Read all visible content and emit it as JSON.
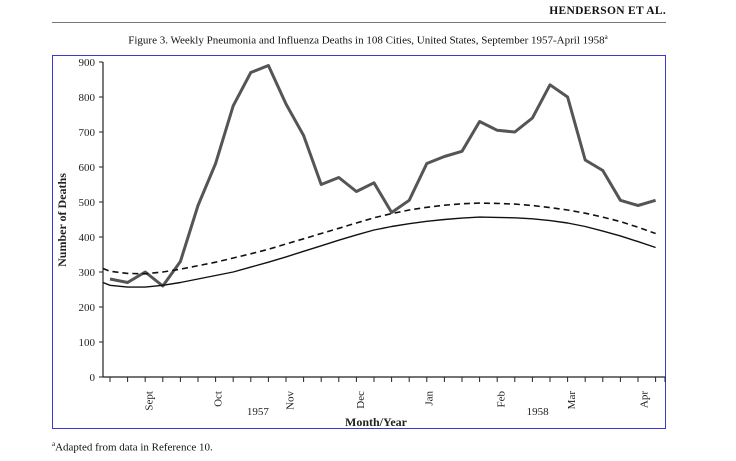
{
  "header": {
    "running_head": "HENDERSON ET AL."
  },
  "caption": {
    "text": "Figure 3.   Weekly Pneumonia and Influenza Deaths in 108 Cities, United States, September 1957-April 1958",
    "marker": "a"
  },
  "footnote": {
    "marker": "a",
    "text": "Adapted from data in Reference 10."
  },
  "colors": {
    "frame": "#3a3ad0",
    "observed": "#555555",
    "baseline": "#111111"
  },
  "chart_data": {
    "type": "line",
    "title": "Weekly Pneumonia and Influenza Deaths in 108 Cities, United States, September 1957-April 1958",
    "xlabel": "Month/Year",
    "ylabel": "Number of Deaths",
    "ylim": [
      0,
      900
    ],
    "yticks": [
      0,
      100,
      200,
      300,
      400,
      500,
      600,
      700,
      800,
      900
    ],
    "grid": false,
    "legend": "none",
    "month_ticks": [
      {
        "label": "Sept",
        "week": 3.2
      },
      {
        "label": "Oct",
        "week": 7.1
      },
      {
        "label": "Nov",
        "week": 11.2
      },
      {
        "label": "Dec",
        "week": 15.2
      },
      {
        "label": "Jan",
        "week": 19.1
      },
      {
        "label": "Feb",
        "week": 23.2
      },
      {
        "label": "Mar",
        "week": 27.2
      },
      {
        "label": "Apr",
        "week": 31.3
      }
    ],
    "year_labels": [
      {
        "label": "1957",
        "week": 9.4
      },
      {
        "label": "1958",
        "week": 25.3
      }
    ],
    "x": [
      1,
      2,
      3,
      4,
      5,
      6,
      7,
      8,
      9,
      10,
      11,
      12,
      13,
      14,
      15,
      16,
      17,
      18,
      19,
      20,
      21,
      22,
      23,
      24,
      25,
      26,
      27,
      28,
      29,
      30,
      31,
      32
    ],
    "series": [
      {
        "style": "thick-solid",
        "values": [
          280,
          270,
          300,
          260,
          330,
          490,
          610,
          775,
          870,
          890,
          780,
          690,
          550,
          570,
          530,
          555,
          470,
          505,
          610,
          630,
          645,
          730,
          705,
          700,
          740,
          835,
          800,
          620,
          590,
          505,
          490,
          505
        ]
      },
      {
        "style": "dashed",
        "values": [
          302,
          296,
          295,
          300,
          308,
          318,
          328,
          340,
          352,
          365,
          380,
          395,
          410,
          425,
          440,
          455,
          467,
          477,
          485,
          491,
          495,
          497,
          496,
          494,
          490,
          484,
          477,
          468,
          457,
          444,
          428,
          410
        ]
      },
      {
        "style": "thin-solid",
        "values": [
          262,
          257,
          257,
          262,
          270,
          280,
          290,
          300,
          314,
          328,
          343,
          359,
          375,
          391,
          406,
          420,
          430,
          438,
          445,
          450,
          454,
          457,
          456,
          455,
          452,
          447,
          440,
          430,
          417,
          403,
          387,
          370
        ]
      }
    ]
  }
}
